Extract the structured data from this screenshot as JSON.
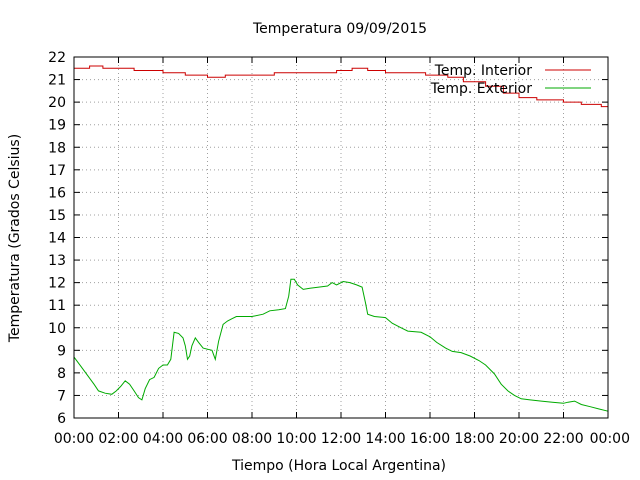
{
  "chart_data": {
    "type": "line",
    "title": "Temperatura 09/09/2015",
    "xlabel": "Tiempo (Hora Local Argentina)",
    "ylabel": "Temperatura (Grados Celsius)",
    "xlim": [
      0,
      24
    ],
    "ylim": [
      6,
      22
    ],
    "x_ticks": [
      {
        "value": 0,
        "label": "00:00"
      },
      {
        "value": 2,
        "label": "02:00"
      },
      {
        "value": 4,
        "label": "04:00"
      },
      {
        "value": 6,
        "label": "06:00"
      },
      {
        "value": 8,
        "label": "08:00"
      },
      {
        "value": 10,
        "label": "10:00"
      },
      {
        "value": 12,
        "label": "12:00"
      },
      {
        "value": 14,
        "label": "14:00"
      },
      {
        "value": 16,
        "label": "16:00"
      },
      {
        "value": 18,
        "label": "18:00"
      },
      {
        "value": 20,
        "label": "20:00"
      },
      {
        "value": 22,
        "label": "22:00"
      },
      {
        "value": 24,
        "label": "00:00"
      }
    ],
    "y_ticks": [
      {
        "value": 6,
        "label": "6"
      },
      {
        "value": 7,
        "label": "7"
      },
      {
        "value": 8,
        "label": "8"
      },
      {
        "value": 9,
        "label": "9"
      },
      {
        "value": 10,
        "label": "10"
      },
      {
        "value": 11,
        "label": "11"
      },
      {
        "value": 12,
        "label": "12"
      },
      {
        "value": 13,
        "label": "13"
      },
      {
        "value": 14,
        "label": "14"
      },
      {
        "value": 15,
        "label": "15"
      },
      {
        "value": 16,
        "label": "16"
      },
      {
        "value": 17,
        "label": "17"
      },
      {
        "value": 18,
        "label": "18"
      },
      {
        "value": 19,
        "label": "19"
      },
      {
        "value": 20,
        "label": "20"
      },
      {
        "value": 21,
        "label": "21"
      },
      {
        "value": 22,
        "label": "22"
      }
    ],
    "grid": true,
    "legend_position": "top-right",
    "series": [
      {
        "name": "Temp. Interior",
        "color": "#cc0000",
        "points": [
          [
            0.0,
            21.5
          ],
          [
            0.7,
            21.5
          ],
          [
            0.7,
            21.6
          ],
          [
            1.3,
            21.6
          ],
          [
            1.3,
            21.5
          ],
          [
            2.7,
            21.5
          ],
          [
            2.7,
            21.4
          ],
          [
            4.0,
            21.4
          ],
          [
            4.0,
            21.3
          ],
          [
            5.0,
            21.3
          ],
          [
            5.0,
            21.2
          ],
          [
            6.0,
            21.2
          ],
          [
            6.0,
            21.1
          ],
          [
            6.8,
            21.1
          ],
          [
            6.8,
            21.2
          ],
          [
            9.0,
            21.2
          ],
          [
            9.0,
            21.3
          ],
          [
            11.8,
            21.3
          ],
          [
            11.8,
            21.4
          ],
          [
            12.5,
            21.4
          ],
          [
            12.5,
            21.5
          ],
          [
            13.2,
            21.5
          ],
          [
            13.2,
            21.4
          ],
          [
            14.0,
            21.4
          ],
          [
            14.0,
            21.3
          ],
          [
            15.8,
            21.3
          ],
          [
            15.8,
            21.2
          ],
          [
            16.8,
            21.2
          ],
          [
            16.8,
            21.1
          ],
          [
            17.5,
            21.1
          ],
          [
            17.5,
            20.9
          ],
          [
            18.5,
            20.9
          ],
          [
            18.5,
            20.7
          ],
          [
            19.3,
            20.7
          ],
          [
            19.3,
            20.4
          ],
          [
            20.0,
            20.4
          ],
          [
            20.0,
            20.2
          ],
          [
            20.8,
            20.2
          ],
          [
            20.8,
            20.1
          ],
          [
            22.0,
            20.1
          ],
          [
            22.0,
            20.0
          ],
          [
            22.8,
            20.0
          ],
          [
            22.8,
            19.9
          ],
          [
            23.7,
            19.9
          ],
          [
            23.7,
            19.8
          ],
          [
            24.0,
            19.8
          ]
        ]
      },
      {
        "name": "Temp. Exterior",
        "color": "#00aa00",
        "points": [
          [
            0.0,
            8.7
          ],
          [
            0.3,
            8.3
          ],
          [
            0.6,
            7.9
          ],
          [
            0.9,
            7.5
          ],
          [
            1.1,
            7.2
          ],
          [
            1.4,
            7.1
          ],
          [
            1.7,
            7.05
          ],
          [
            1.9,
            7.2
          ],
          [
            2.1,
            7.4
          ],
          [
            2.3,
            7.65
          ],
          [
            2.5,
            7.5
          ],
          [
            2.7,
            7.2
          ],
          [
            2.9,
            6.9
          ],
          [
            3.05,
            6.8
          ],
          [
            3.2,
            7.3
          ],
          [
            3.4,
            7.7
          ],
          [
            3.6,
            7.8
          ],
          [
            3.8,
            8.2
          ],
          [
            4.0,
            8.35
          ],
          [
            4.2,
            8.35
          ],
          [
            4.35,
            8.6
          ],
          [
            4.5,
            9.8
          ],
          [
            4.7,
            9.75
          ],
          [
            4.9,
            9.55
          ],
          [
            5.0,
            9.2
          ],
          [
            5.1,
            8.6
          ],
          [
            5.2,
            8.75
          ],
          [
            5.3,
            9.2
          ],
          [
            5.45,
            9.55
          ],
          [
            5.6,
            9.35
          ],
          [
            5.8,
            9.1
          ],
          [
            6.0,
            9.05
          ],
          [
            6.2,
            9.0
          ],
          [
            6.35,
            8.6
          ],
          [
            6.5,
            9.4
          ],
          [
            6.7,
            10.15
          ],
          [
            6.9,
            10.3
          ],
          [
            7.1,
            10.4
          ],
          [
            7.3,
            10.5
          ],
          [
            8.0,
            10.5
          ],
          [
            8.5,
            10.6
          ],
          [
            8.8,
            10.75
          ],
          [
            9.2,
            10.8
          ],
          [
            9.5,
            10.85
          ],
          [
            9.65,
            11.4
          ],
          [
            9.75,
            12.15
          ],
          [
            9.9,
            12.15
          ],
          [
            10.05,
            11.9
          ],
          [
            10.3,
            11.7
          ],
          [
            10.6,
            11.75
          ],
          [
            11.0,
            11.8
          ],
          [
            11.4,
            11.85
          ],
          [
            11.6,
            12.0
          ],
          [
            11.8,
            11.9
          ],
          [
            12.1,
            12.05
          ],
          [
            12.4,
            12.0
          ],
          [
            12.7,
            11.9
          ],
          [
            12.95,
            11.8
          ],
          [
            13.1,
            11.1
          ],
          [
            13.2,
            10.6
          ],
          [
            13.5,
            10.5
          ],
          [
            14.0,
            10.45
          ],
          [
            14.3,
            10.2
          ],
          [
            14.7,
            10.0
          ],
          [
            15.0,
            9.85
          ],
          [
            15.6,
            9.8
          ],
          [
            16.0,
            9.6
          ],
          [
            16.3,
            9.35
          ],
          [
            16.7,
            9.1
          ],
          [
            17.0,
            8.95
          ],
          [
            17.4,
            8.9
          ],
          [
            17.8,
            8.75
          ],
          [
            18.2,
            8.55
          ],
          [
            18.5,
            8.35
          ],
          [
            18.9,
            7.95
          ],
          [
            19.2,
            7.5
          ],
          [
            19.5,
            7.2
          ],
          [
            19.8,
            7.0
          ],
          [
            20.1,
            6.85
          ],
          [
            20.5,
            6.8
          ],
          [
            21.0,
            6.75
          ],
          [
            21.5,
            6.7
          ],
          [
            22.0,
            6.65
          ],
          [
            22.2,
            6.7
          ],
          [
            22.5,
            6.75
          ],
          [
            22.8,
            6.6
          ],
          [
            23.2,
            6.5
          ],
          [
            23.6,
            6.4
          ],
          [
            24.0,
            6.3
          ]
        ]
      }
    ]
  }
}
